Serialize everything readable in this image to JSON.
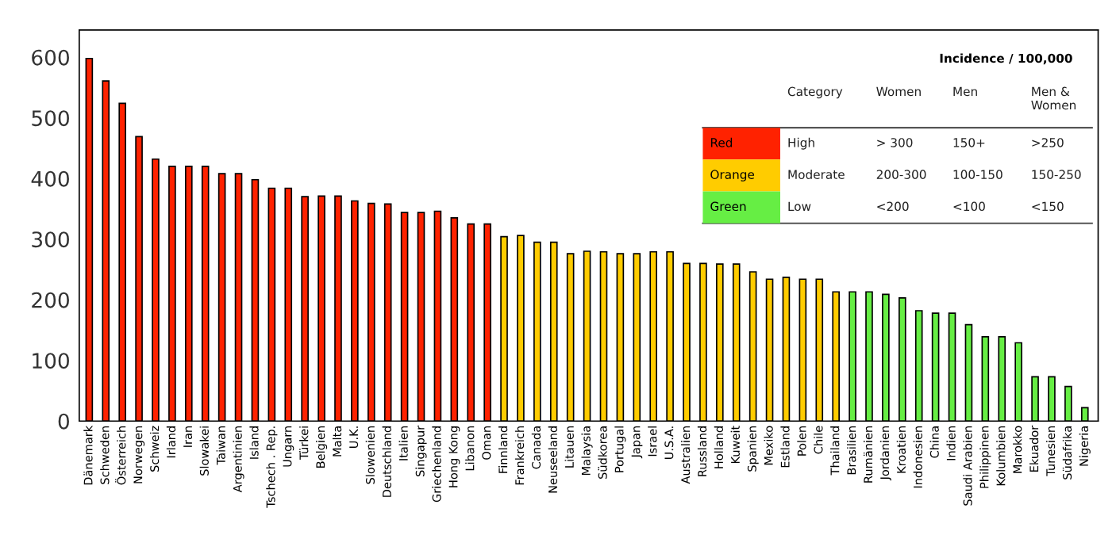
{
  "chart_data": {
    "type": "bar",
    "categories": [
      "Dänemark",
      "Schweden",
      "Österreich",
      "Norwegen",
      "Schweiz",
      "Irland",
      "Iran",
      "Slowakei",
      "Taiwan",
      "Argentinien",
      "Island",
      "Tschech . Rep.",
      "Ungarn",
      "Türkei",
      "Belgien",
      "Malta",
      "U.K.",
      "Slowenien",
      "Deutschland",
      "Italien",
      "Singapur",
      "Griechenland",
      "Hong Kong",
      "Libanon",
      "Oman",
      "Finnland",
      "Frankreich",
      "Canada",
      "Neuseeland",
      "Litauen",
      "Malaysia",
      "Südkorea",
      "Portugal",
      "Japan",
      "Israel",
      "U.S.A.",
      "Australien",
      "Russland",
      "Holland",
      "Kuweit",
      "Spanien",
      "Mexiko",
      "Estland",
      "Polen",
      "Chile",
      "Thailand",
      "Brasilien",
      "Rumänien",
      "Jordanien",
      "Kroatien",
      "Indonesien",
      "China",
      "Indien",
      "Saudi Arabien",
      "Philippinen",
      "Kolumbien",
      "Marokko",
      "Ekuador",
      "Tunesien",
      "Südafrika",
      "Nigeria"
    ],
    "series": [
      {
        "name": "Red",
        "color": "#ff2200",
        "values": [
          598,
          561,
          524,
          469,
          432,
          420,
          420,
          420,
          408,
          408,
          398,
          384,
          384,
          370,
          371,
          371,
          363,
          359,
          358,
          344,
          344,
          346,
          335,
          325,
          325,
          null,
          null,
          null,
          null,
          null,
          null,
          null,
          null,
          null,
          null,
          null,
          null,
          null,
          null,
          null,
          null,
          null,
          null,
          null,
          null,
          null,
          null,
          null,
          null,
          null,
          null,
          null,
          null,
          null,
          null,
          null,
          null,
          null,
          null,
          null,
          null
        ]
      },
      {
        "name": "Orange",
        "color": "#ffcc00",
        "values": [
          null,
          null,
          null,
          null,
          null,
          null,
          null,
          null,
          null,
          null,
          null,
          null,
          null,
          null,
          null,
          null,
          null,
          null,
          null,
          null,
          null,
          null,
          null,
          null,
          null,
          304,
          306,
          295,
          295,
          276,
          280,
          279,
          276,
          276,
          279,
          279,
          260,
          260,
          259,
          259,
          246,
          234,
          237,
          234,
          234,
          213,
          null,
          null,
          null,
          null,
          null,
          null,
          null,
          null,
          null,
          null,
          null,
          null,
          null,
          null,
          null
        ]
      },
      {
        "name": "Green",
        "color": "#66ee44",
        "values": [
          null,
          null,
          null,
          null,
          null,
          null,
          null,
          null,
          null,
          null,
          null,
          null,
          null,
          null,
          null,
          null,
          null,
          null,
          null,
          null,
          null,
          null,
          null,
          null,
          null,
          null,
          null,
          null,
          null,
          null,
          null,
          null,
          null,
          null,
          null,
          null,
          null,
          null,
          null,
          null,
          null,
          null,
          null,
          null,
          null,
          null,
          213,
          213,
          209,
          203,
          182,
          178,
          178,
          159,
          139,
          139,
          129,
          73,
          73,
          57,
          22
        ]
      }
    ],
    "ylim": [
      0,
      645
    ],
    "yticks": [
      0,
      100,
      200,
      300,
      400,
      500,
      600
    ],
    "grid": false,
    "legend": "top right",
    "annotations": [
      "Incidence / 100,000",
      "Category",
      "Women",
      "Men",
      "Men &\nWomen",
      "High",
      "> 300",
      "150+",
      ">250",
      "Moderate",
      "200-300",
      "100-150",
      "150-250",
      "Low",
      "<200",
      "<100",
      "<150"
    ]
  }
}
